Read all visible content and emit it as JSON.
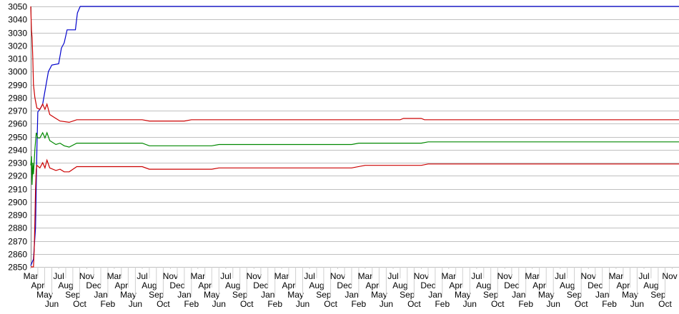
{
  "chart_data": {
    "type": "line",
    "title": "",
    "xlabel": "",
    "ylabel": "",
    "ylim": [
      2850,
      3050
    ],
    "yticks": [
      2850,
      2860,
      2870,
      2880,
      2890,
      2900,
      2910,
      2920,
      2930,
      2940,
      2950,
      2960,
      2970,
      2980,
      2990,
      3000,
      3010,
      3020,
      3030,
      3040,
      3050
    ],
    "xlim": [
      "2017-03-01",
      "2024-12-01"
    ],
    "grid": "horizontal",
    "legend": "none",
    "x_tick_labels": [
      "Mar",
      "Apr",
      "May",
      "Jun",
      "Jul",
      "Aug",
      "Sep",
      "Oct",
      "Nov",
      "Dec",
      "Jan",
      "Feb"
    ],
    "series": [
      {
        "color": "#0000cc",
        "points": [
          [
            "2017-03-01",
            2851
          ],
          [
            "2017-03-13",
            2856
          ],
          [
            "2017-03-22",
            2880
          ],
          [
            "2017-03-28",
            2940
          ],
          [
            "2017-04-01",
            2969
          ],
          [
            "2017-04-10",
            2971
          ],
          [
            "2017-04-22",
            2975
          ],
          [
            "2017-05-02",
            2985
          ],
          [
            "2017-05-17",
            3000
          ],
          [
            "2017-06-01",
            3005
          ],
          [
            "2017-07-01",
            3006
          ],
          [
            "2017-07-13",
            3018
          ],
          [
            "2017-07-25",
            3022
          ],
          [
            "2017-08-07",
            3032
          ],
          [
            "2017-09-12",
            3032
          ],
          [
            "2017-09-21",
            3045
          ],
          [
            "2017-10-03",
            3050
          ],
          [
            "2024-12-01",
            3050
          ]
        ]
      },
      {
        "color": "#cc0000",
        "points": [
          [
            "2017-03-01",
            3050
          ],
          [
            "2017-03-04",
            3032
          ],
          [
            "2017-03-07",
            3026
          ],
          [
            "2017-03-10",
            3010
          ],
          [
            "2017-03-13",
            2990
          ],
          [
            "2017-03-19",
            2980
          ],
          [
            "2017-03-28",
            2972
          ],
          [
            "2017-04-10",
            2971
          ],
          [
            "2017-04-22",
            2975
          ],
          [
            "2017-05-02",
            2971
          ],
          [
            "2017-05-11",
            2975
          ],
          [
            "2017-05-23",
            2967
          ],
          [
            "2017-06-19",
            2964
          ],
          [
            "2017-07-07",
            2962
          ],
          [
            "2017-08-16",
            2961
          ],
          [
            "2017-09-18",
            2963
          ],
          [
            "2018-07-01",
            2963
          ],
          [
            "2018-08-01",
            2962
          ],
          [
            "2019-01-01",
            2962
          ],
          [
            "2019-02-01",
            2963
          ],
          [
            "2021-08-01",
            2963
          ],
          [
            "2021-08-15",
            2964
          ],
          [
            "2021-11-01",
            2964
          ],
          [
            "2021-11-15",
            2963
          ],
          [
            "2024-12-01",
            2963
          ]
        ]
      },
      {
        "color": "#008800",
        "points": [
          [
            "2017-03-01",
            2928
          ],
          [
            "2017-03-04",
            2935
          ],
          [
            "2017-03-07",
            2913
          ],
          [
            "2017-03-10",
            2930
          ],
          [
            "2017-03-13",
            2921
          ],
          [
            "2017-03-19",
            2940
          ],
          [
            "2017-03-25",
            2953
          ],
          [
            "2017-04-01",
            2949
          ],
          [
            "2017-04-10",
            2949
          ],
          [
            "2017-04-22",
            2953
          ],
          [
            "2017-05-02",
            2949
          ],
          [
            "2017-05-11",
            2953
          ],
          [
            "2017-05-23",
            2947
          ],
          [
            "2017-06-19",
            2944
          ],
          [
            "2017-07-07",
            2945
          ],
          [
            "2017-07-25",
            2943
          ],
          [
            "2017-08-16",
            2942
          ],
          [
            "2017-09-18",
            2945
          ],
          [
            "2018-07-01",
            2945
          ],
          [
            "2018-08-01",
            2943
          ],
          [
            "2019-05-01",
            2943
          ],
          [
            "2019-06-01",
            2944
          ],
          [
            "2021-01-01",
            2944
          ],
          [
            "2021-02-01",
            2945
          ],
          [
            "2021-11-01",
            2945
          ],
          [
            "2021-12-01",
            2946
          ],
          [
            "2024-12-01",
            2946
          ]
        ]
      },
      {
        "color": "#cc0000",
        "points": [
          [
            "2017-03-01",
            2850
          ],
          [
            "2017-03-13",
            2850
          ],
          [
            "2017-03-16",
            2862
          ],
          [
            "2017-03-19",
            2885
          ],
          [
            "2017-03-22",
            2910
          ],
          [
            "2017-03-25",
            2925
          ],
          [
            "2017-03-28",
            2928
          ],
          [
            "2017-04-10",
            2926
          ],
          [
            "2017-04-22",
            2930
          ],
          [
            "2017-05-02",
            2926
          ],
          [
            "2017-05-11",
            2932
          ],
          [
            "2017-05-23",
            2926
          ],
          [
            "2017-06-19",
            2924
          ],
          [
            "2017-07-07",
            2925
          ],
          [
            "2017-07-25",
            2923
          ],
          [
            "2017-08-16",
            2923
          ],
          [
            "2017-09-18",
            2927
          ],
          [
            "2018-07-01",
            2927
          ],
          [
            "2018-08-01",
            2925
          ],
          [
            "2019-05-01",
            2925
          ],
          [
            "2019-06-01",
            2926
          ],
          [
            "2021-01-01",
            2926
          ],
          [
            "2021-03-01",
            2928
          ],
          [
            "2021-11-01",
            2928
          ],
          [
            "2021-12-01",
            2929
          ],
          [
            "2024-12-01",
            2929
          ]
        ]
      }
    ]
  }
}
